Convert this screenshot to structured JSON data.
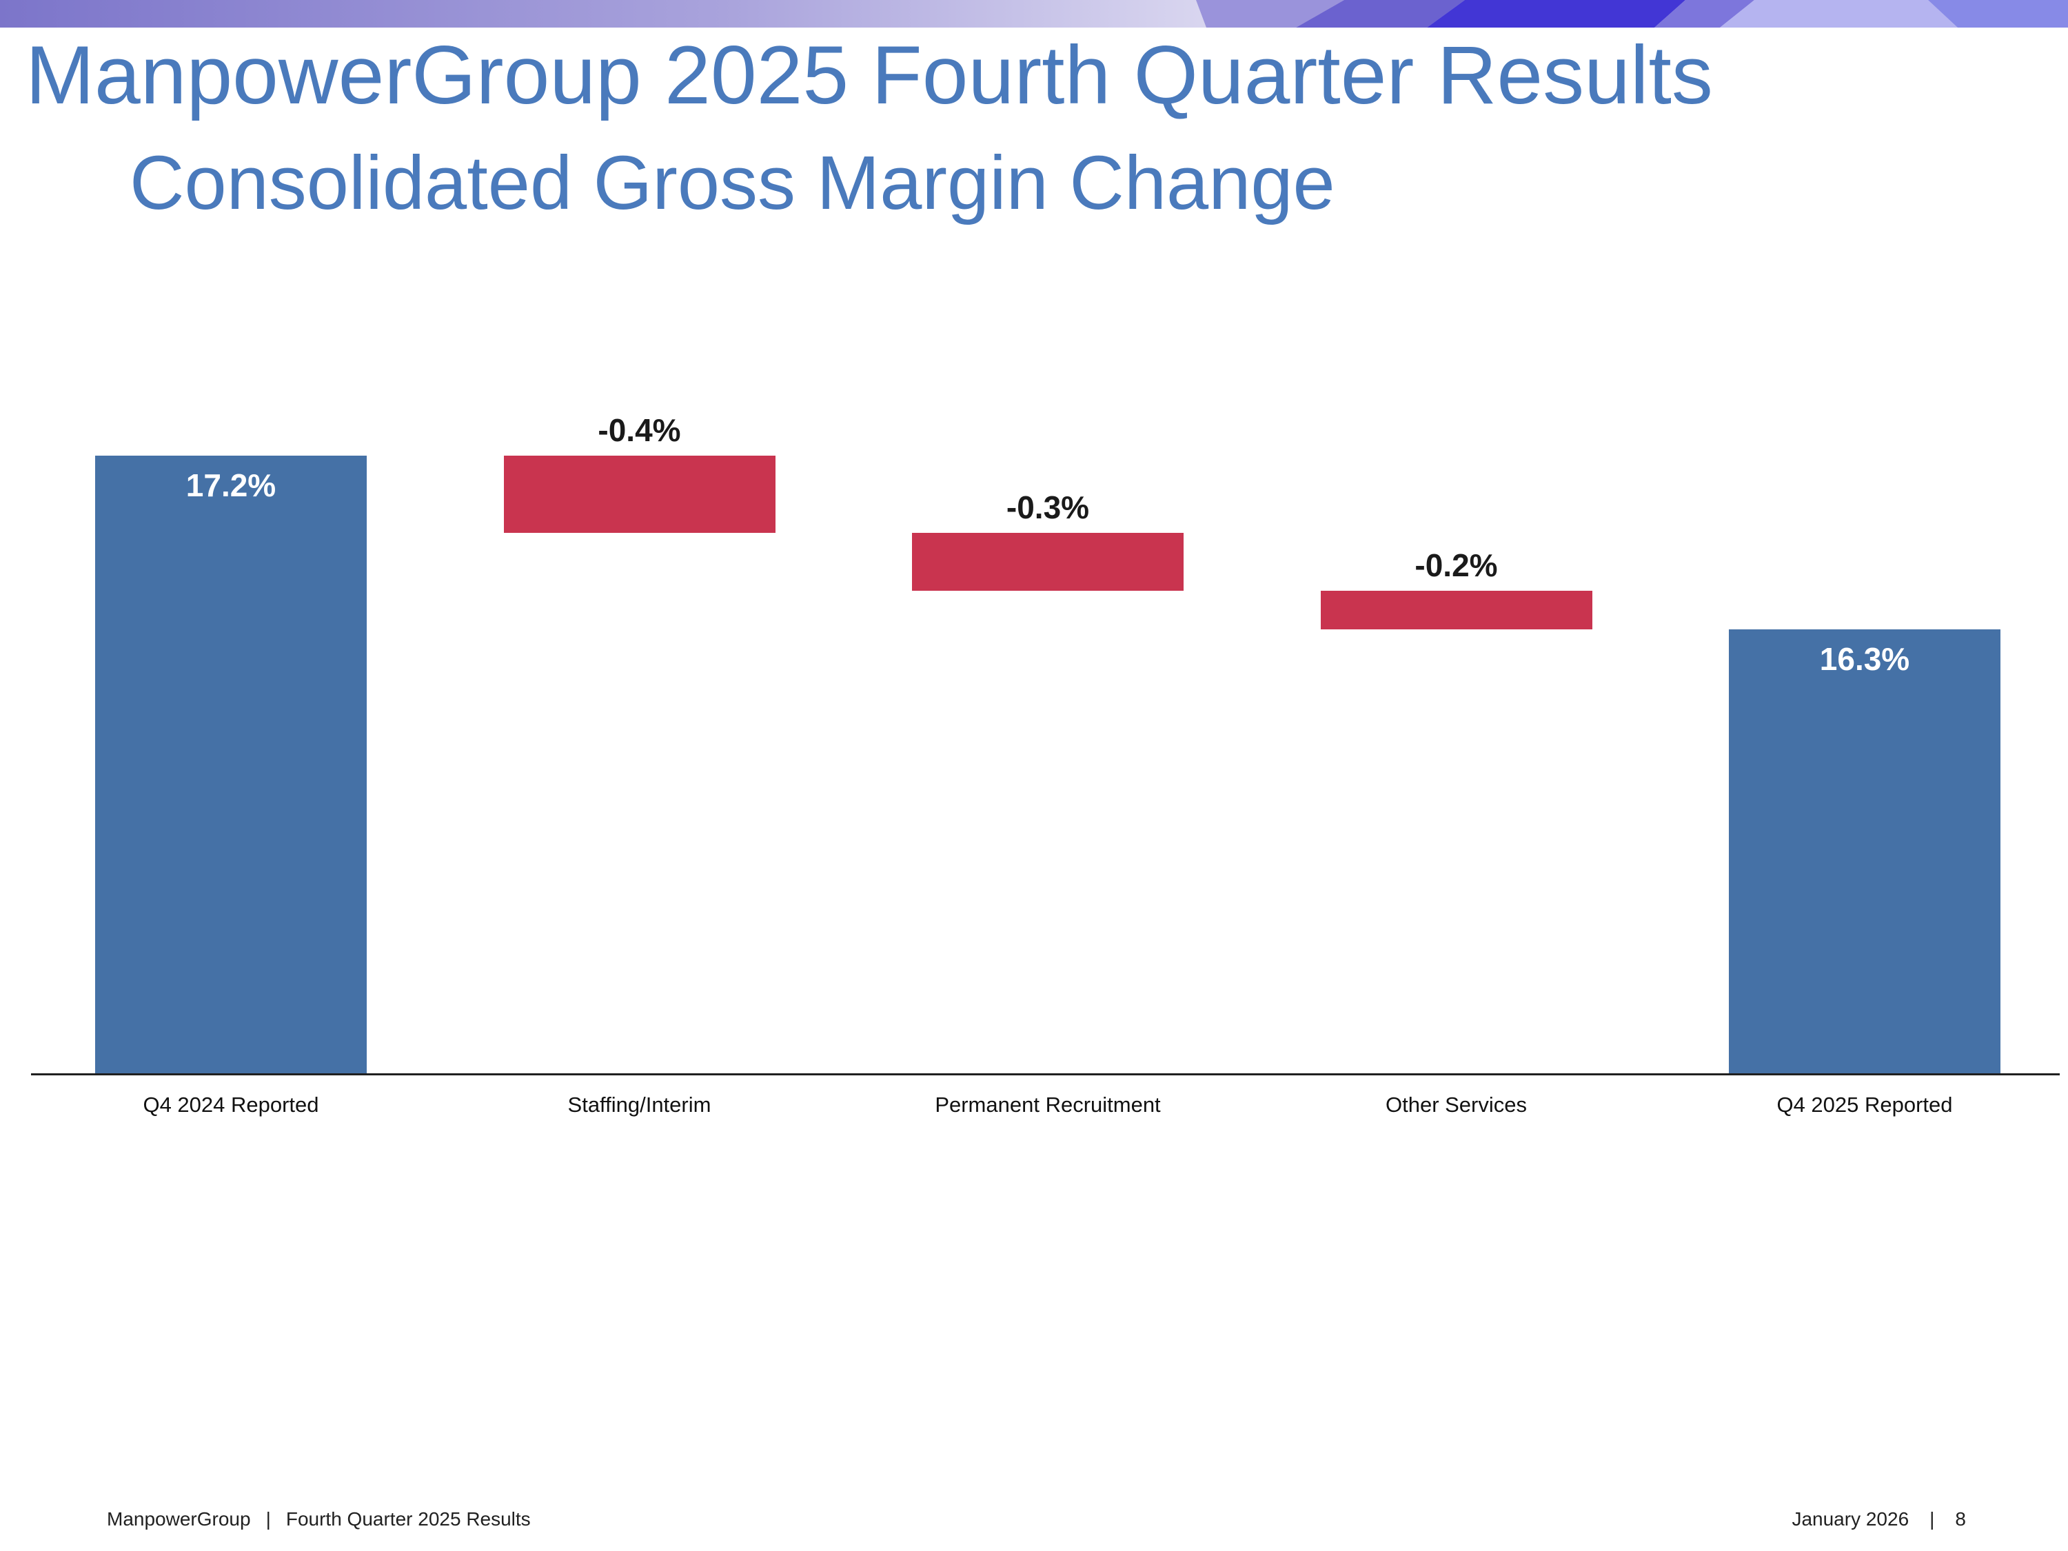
{
  "slide": {
    "title": "ManpowerGroup 2025 Fourth Quarter Results",
    "subtitle": "Consolidated Gross Margin Change"
  },
  "footer": {
    "left": {
      "brand": "ManpowerGroup",
      "separator": "|",
      "text": "Fourth Quarter 2025 Results"
    },
    "right": {
      "date": "January 2026",
      "separator": "|",
      "page": "8"
    }
  },
  "colors": {
    "title_blue": "#4A7ABC",
    "bar_blue": "#4571A6",
    "bar_red": "#C9344F",
    "axis": "#202020",
    "banner_base_left": "#7C75CA",
    "banner_base_right": "#D8D5EF",
    "banner_wedges": [
      "#9A93DB",
      "#6B62CF",
      "#4236D5",
      "#7D76DC",
      "#B5B4F0",
      "#878AE7"
    ]
  },
  "chart_data": {
    "type": "bar",
    "subtype": "waterfall",
    "title": "",
    "xlabel": "",
    "ylabel": "",
    "grid": false,
    "legend": false,
    "ylim": [
      14.0,
      17.6
    ],
    "baseline_value": 14.0,
    "categories": [
      "Q4 2024 Reported",
      "Staffing/Interim",
      "Permanent Recruitment",
      "Other Services",
      "Q4 2025 Reported"
    ],
    "bars": [
      {
        "category": "Q4 2024 Reported",
        "value": 17.2,
        "display": "17.2%",
        "role": "total",
        "label_position": "inside"
      },
      {
        "category": "Staffing/Interim",
        "value": -0.4,
        "display": "-0.4%",
        "role": "decrease",
        "label_position": "above"
      },
      {
        "category": "Permanent Recruitment",
        "value": -0.3,
        "display": "-0.3%",
        "role": "decrease",
        "label_position": "above"
      },
      {
        "category": "Other Services",
        "value": -0.2,
        "display": "-0.2%",
        "role": "decrease",
        "label_position": "above"
      },
      {
        "category": "Q4 2025 Reported",
        "value": 16.3,
        "display": "16.3%",
        "role": "total",
        "label_position": "inside"
      }
    ]
  }
}
